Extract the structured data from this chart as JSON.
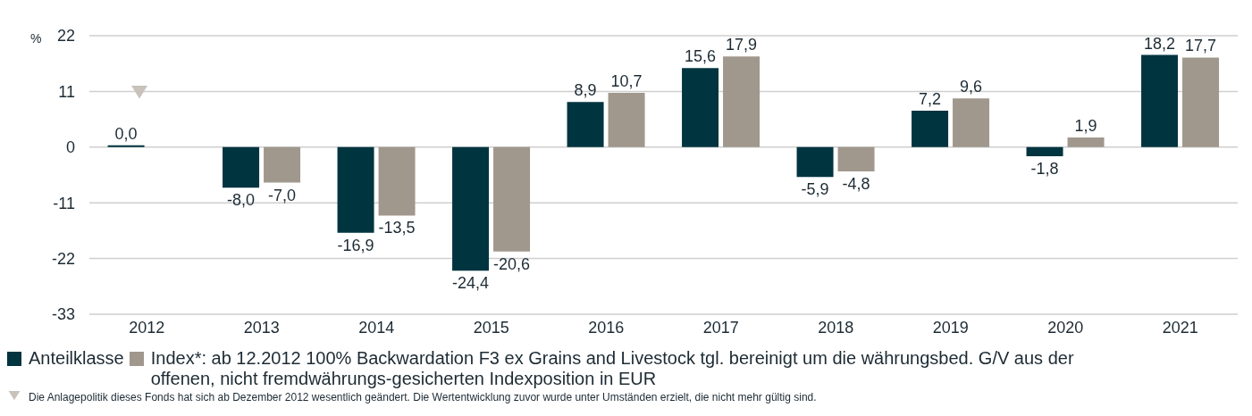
{
  "chart_data": {
    "type": "bar",
    "ylabel": "%",
    "categories": [
      "2012",
      "2013",
      "2014",
      "2015",
      "2016",
      "2017",
      "2018",
      "2019",
      "2020",
      "2021"
    ],
    "series": [
      {
        "name": "Anteilklasse",
        "color": "#00343f",
        "values": [
          0.0,
          -8.0,
          -16.9,
          -24.4,
          8.9,
          15.6,
          -5.9,
          7.2,
          -1.8,
          18.2
        ],
        "value_labels": [
          "0,0",
          "-8,0",
          "-16,9",
          "-24,4",
          "8,9",
          "15,6",
          "-5,9",
          "7,2",
          "-1,8",
          "18,2"
        ]
      },
      {
        "name": "Index*: ab 12.2012 100% Backwardation F3 ex Grains and Livestock tgl. bereinigt um die währungsbed. G/V aus der offenen, nicht fremdwährungs-gesicherten Indexposition in EUR",
        "color": "#a0978d",
        "values": [
          null,
          -7.0,
          -13.5,
          -20.6,
          10.7,
          17.9,
          -4.8,
          9.6,
          1.9,
          17.7
        ],
        "value_labels": [
          null,
          "-7,0",
          "-13,5",
          "-20,6",
          "10,7",
          "17,9",
          "-4,8",
          "9,6",
          "1,9",
          "17,7"
        ]
      }
    ],
    "ylim": [
      -33,
      22
    ],
    "yticks": [
      -33,
      -22,
      -11,
      0,
      11,
      22
    ],
    "grid": "y",
    "legend": "bottom",
    "annotations": [
      "Die Anlagepolitik dieses Fonds hat sich ab Dezember 2012 wesentlich geändert. Die Wertentwicklung zuvor wurde unter Umständen erzielt, die nicht mehr gültig sind."
    ]
  }
}
